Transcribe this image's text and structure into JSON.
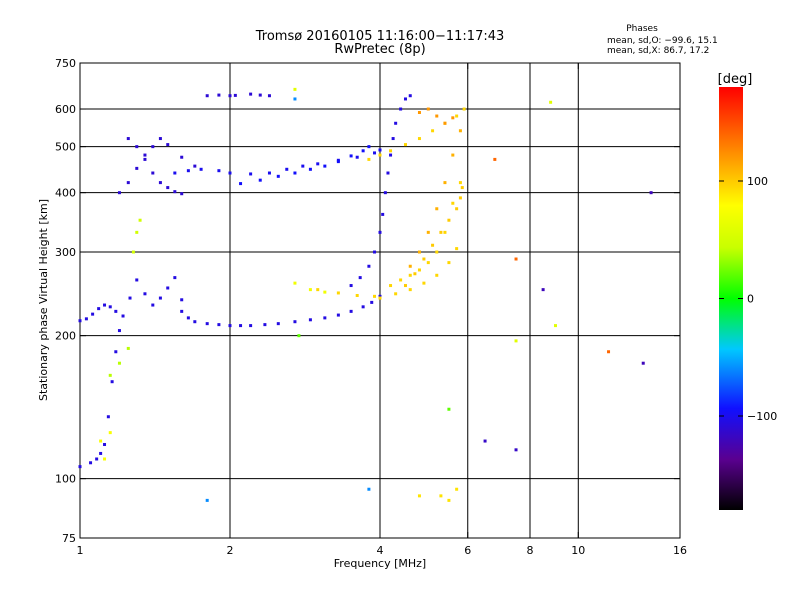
{
  "chart_data": {
    "type": "scatter",
    "title": "Tromsø 20160105 11:16:00−11:17:43",
    "subtitle": "RwPretec (8p)",
    "phases_block": {
      "heading": "Phases",
      "line_o": "mean, sd,O: −99.6, 15.1",
      "line_x": "mean, sd,X:  86.7, 17.2"
    },
    "xlabel": "Frequency [MHz]",
    "ylabel": "Stationary phase Virtual Height [km]",
    "x_scale": "log",
    "y_scale": "log",
    "xlim": [
      1,
      16
    ],
    "ylim": [
      75,
      750
    ],
    "x_ticks": [
      {
        "value": 1,
        "label": "1"
      },
      {
        "value": 2,
        "label": "2"
      },
      {
        "value": 4,
        "label": "4"
      },
      {
        "value": 6,
        "label": "6"
      },
      {
        "value": 8,
        "label": "8"
      },
      {
        "value": 10,
        "label": "10"
      },
      {
        "value": 16,
        "label": "16"
      }
    ],
    "y_ticks": [
      {
        "value": 75,
        "label": "75"
      },
      {
        "value": 100,
        "label": "100"
      },
      {
        "value": 200,
        "label": "200"
      },
      {
        "value": 300,
        "label": "300"
      },
      {
        "value": 400,
        "label": "400"
      },
      {
        "value": 500,
        "label": "500"
      },
      {
        "value": 600,
        "label": "600"
      },
      {
        "value": 750,
        "label": "750"
      }
    ],
    "x_gridlines": [
      2,
      4,
      6,
      8,
      10
    ],
    "y_gridlines": [
      100,
      200,
      300,
      400,
      500,
      600
    ],
    "grid": true,
    "colorbar": {
      "label": "[deg]",
      "range": [
        -180,
        180
      ],
      "ticks": [
        {
          "value": 100,
          "label": "100"
        },
        {
          "value": 0,
          "label": "0"
        },
        {
          "value": -100,
          "label": "−100"
        }
      ]
    },
    "series": [
      {
        "phase": -105,
        "x": [
          1.0,
          1.03,
          1.06,
          1.09,
          1.12,
          1.15,
          1.18,
          1.22,
          1.26,
          1.3,
          1.35,
          1.4,
          1.45,
          1.5,
          1.55,
          1.6
        ],
        "y": [
          215,
          217,
          222,
          228,
          232,
          230,
          225,
          220,
          240,
          262,
          245,
          232,
          240,
          252,
          265,
          238
        ]
      },
      {
        "phase": -105,
        "x": [
          1.6,
          1.65,
          1.7,
          1.8,
          1.9,
          2.0,
          2.1,
          2.2,
          2.35,
          2.5,
          2.7,
          2.9,
          3.1,
          3.3,
          3.5,
          3.7,
          3.85,
          4.0
        ],
        "y": [
          225,
          218,
          214,
          212,
          211,
          210,
          210,
          210,
          211,
          212,
          214,
          216,
          218,
          221,
          225,
          230,
          235,
          242
        ]
      },
      {
        "phase": -105,
        "x": [
          3.5,
          3.65,
          3.8,
          3.9,
          4.0,
          4.05,
          4.1,
          4.15,
          4.2,
          4.25,
          4.3,
          4.4,
          4.5,
          4.6
        ],
        "y": [
          255,
          265,
          280,
          300,
          330,
          360,
          400,
          440,
          480,
          520,
          560,
          600,
          630,
          640
        ]
      },
      {
        "phase": -100,
        "x": [
          1.55,
          1.65,
          1.75,
          1.9,
          2.0,
          2.2,
          2.4,
          2.6,
          2.8,
          3.0,
          3.3,
          3.6,
          3.9,
          4.0
        ],
        "y": [
          440,
          445,
          448,
          445,
          440,
          438,
          440,
          448,
          455,
          460,
          468,
          475,
          485,
          492
        ]
      },
      {
        "phase": -95,
        "x": [
          2.1,
          2.3,
          2.5,
          2.7,
          2.9,
          3.1,
          3.3,
          3.5,
          3.7,
          3.8
        ],
        "y": [
          418,
          425,
          433,
          440,
          448,
          455,
          465,
          478,
          490,
          500
        ]
      },
      {
        "phase": -110,
        "x": [
          1.25,
          1.3,
          1.35,
          1.4,
          1.45,
          1.5,
          1.55,
          1.6
        ],
        "y": [
          520,
          500,
          470,
          440,
          420,
          410,
          402,
          398
        ]
      },
      {
        "phase": -110,
        "x": [
          1.2,
          1.25,
          1.3,
          1.35,
          1.4,
          1.45,
          1.5,
          1.6,
          1.7
        ],
        "y": [
          400,
          420,
          450,
          480,
          500,
          520,
          505,
          475,
          455
        ]
      },
      {
        "phase": -105,
        "x": [
          1.0,
          1.05,
          1.08,
          1.1,
          1.12,
          1.14,
          1.16,
          1.18,
          1.2
        ],
        "y": [
          106,
          108,
          110,
          113,
          118,
          135,
          160,
          185,
          205
        ]
      },
      {
        "phase": -110,
        "x": [
          1.8,
          1.9,
          2.0,
          2.05
        ],
        "y": [
          640,
          642,
          640,
          641
        ]
      },
      {
        "phase": -110,
        "x": [
          2.2,
          2.3,
          2.4
        ],
        "y": [
          645,
          642,
          640
        ]
      },
      {
        "phase": -115,
        "x": [
          6.5,
          7.5
        ],
        "y": [
          120,
          115
        ]
      },
      {
        "phase": 95,
        "x": [
          3.0,
          3.3,
          3.6,
          3.9,
          4.0,
          4.3,
          4.6,
          4.9,
          5.2,
          5.5,
          5.7
        ],
        "y": [
          250,
          246,
          243,
          242,
          240,
          245,
          250,
          258,
          268,
          285,
          305
        ]
      },
      {
        "phase": 95,
        "x": [
          4.2,
          4.4,
          4.6,
          4.8,
          5.0,
          5.2,
          5.4,
          5.6,
          5.8
        ],
        "y": [
          255,
          262,
          268,
          275,
          285,
          300,
          330,
          380,
          420
        ]
      },
      {
        "phase": 100,
        "x": [
          4.5,
          4.7,
          4.9,
          5.1,
          5.3,
          5.5,
          5.7,
          5.8,
          5.85
        ],
        "y": [
          255,
          270,
          290,
          310,
          330,
          350,
          370,
          390,
          410
        ]
      },
      {
        "phase": 110,
        "x": [
          4.6,
          4.8,
          5.0,
          5.2,
          5.4,
          5.6,
          5.8
        ],
        "y": [
          280,
          300,
          330,
          370,
          420,
          480,
          540
        ]
      },
      {
        "phase": 95,
        "x": [
          3.8,
          4.0,
          4.2,
          4.5,
          4.8,
          5.1,
          5.4,
          5.7,
          5.9
        ],
        "y": [
          470,
          480,
          490,
          505,
          520,
          540,
          560,
          580,
          600
        ]
      },
      {
        "phase": 120,
        "x": [
          4.8,
          5.0,
          5.2,
          5.4,
          5.6
        ],
        "y": [
          590,
          600,
          580,
          560,
          575
        ]
      },
      {
        "phase": 70,
        "x": [
          2.7,
          2.9,
          3.1
        ],
        "y": [
          258,
          250,
          247
        ]
      },
      {
        "phase": 50,
        "x": [
          1.28,
          1.3,
          1.32
        ],
        "y": [
          300,
          330,
          350
        ]
      },
      {
        "phase": 40,
        "x": [
          1.15,
          1.2,
          1.25
        ],
        "y": [
          165,
          175,
          188
        ]
      },
      {
        "phase": 75,
        "x": [
          1.1,
          1.15,
          1.12
        ],
        "y": [
          120,
          125,
          110
        ]
      },
      {
        "phase": 140,
        "x": [
          6.8,
          11.5,
          7.5
        ],
        "y": [
          470,
          185,
          290
        ]
      },
      {
        "phase": -120,
        "x": [
          8.5,
          14.0,
          13.5
        ],
        "y": [
          250,
          400,
          175
        ]
      },
      {
        "phase": 60,
        "x": [
          8.8,
          9.0,
          7.5,
          2.7
        ],
        "y": [
          620,
          210,
          195,
          660
        ]
      },
      {
        "phase": 90,
        "x": [
          5.5,
          5.7,
          5.3,
          4.8
        ],
        "y": [
          90,
          95,
          92,
          92
        ]
      },
      {
        "phase": 20,
        "x": [
          5.5,
          2.75
        ],
        "y": [
          140,
          200
        ]
      },
      {
        "phase": -60,
        "x": [
          1.8,
          3.8,
          2.7
        ],
        "y": [
          90,
          95,
          630
        ]
      }
    ]
  }
}
